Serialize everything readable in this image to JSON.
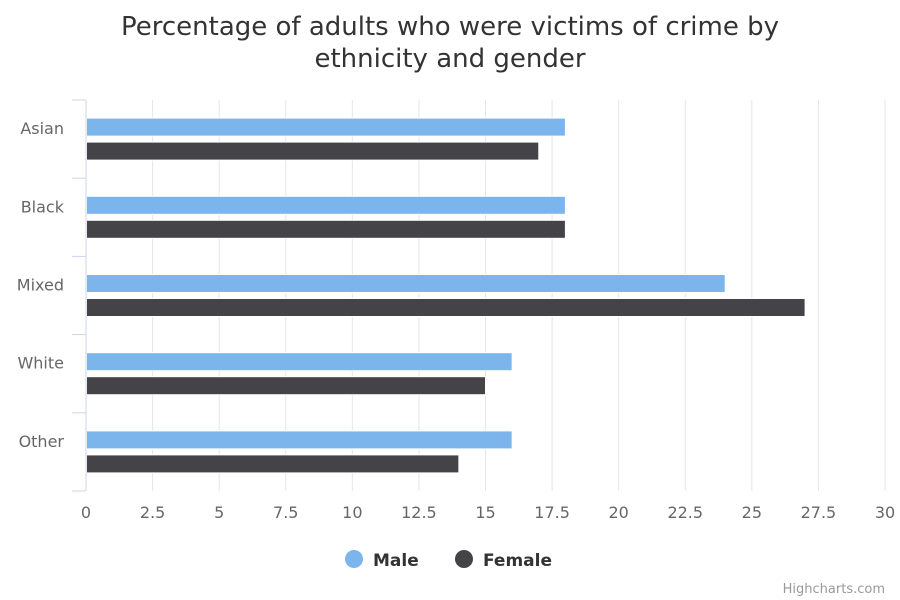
{
  "chart_data": {
    "type": "bar",
    "orientation": "horizontal",
    "title": "Percentage of adults who were victims of crime by ethnicity and gender",
    "title_lines": [
      "Percentage of adults who were victims of crime by",
      "ethnicity and gender"
    ],
    "categories": [
      "Asian",
      "Black",
      "Mixed",
      "White",
      "Other"
    ],
    "series": [
      {
        "name": "Male",
        "color": "#7cb5ec",
        "values": [
          18,
          18,
          24,
          16,
          16
        ]
      },
      {
        "name": "Female",
        "color": "#434348",
        "values": [
          17,
          18,
          27,
          15,
          14
        ]
      }
    ],
    "xlim": [
      0,
      30
    ],
    "x_ticks": [
      "0",
      "2.5",
      "5",
      "7.5",
      "10",
      "12.5",
      "15",
      "17.5",
      "20",
      "22.5",
      "25",
      "27.5",
      "30"
    ],
    "grid": true,
    "legend_position": "bottom"
  },
  "credits": "Highcharts.com"
}
